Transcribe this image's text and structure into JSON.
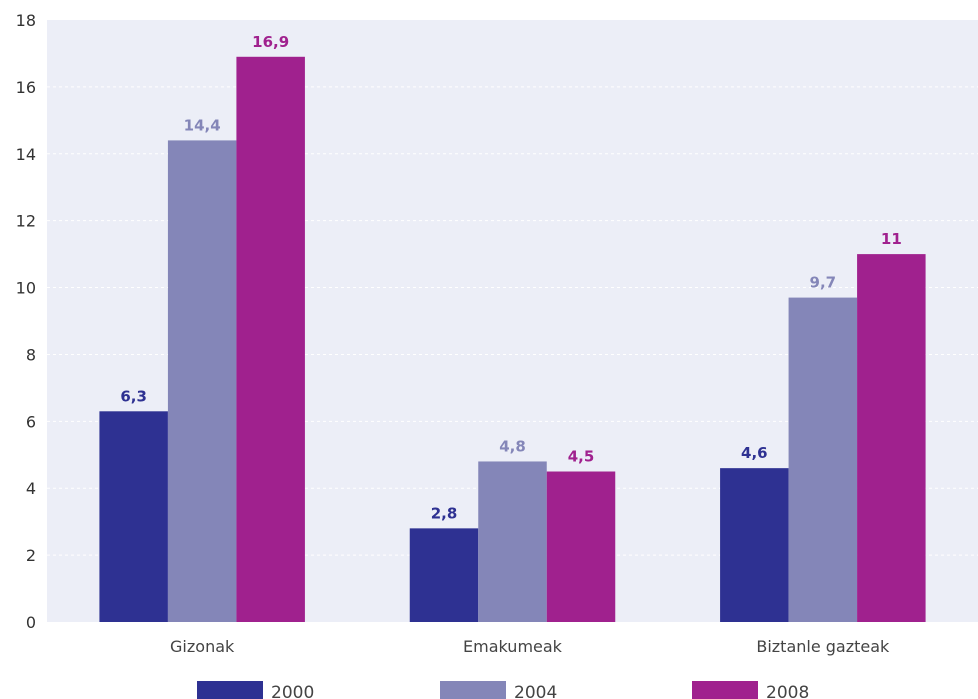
{
  "chart_data": {
    "type": "bar",
    "categories": [
      "Gizonak",
      "Emakumeak",
      "Biztanle gazteak"
    ],
    "series": [
      {
        "name": "2000",
        "values": [
          6.3,
          2.8,
          4.6
        ],
        "labels": [
          "6,3",
          "2,8",
          "4,6"
        ],
        "color": "#2e3192"
      },
      {
        "name": "2004",
        "values": [
          14.4,
          4.8,
          9.7
        ],
        "labels": [
          "14,4",
          "4,8",
          "9,7"
        ],
        "color": "#8486b8"
      },
      {
        "name": "2008",
        "values": [
          16.9,
          4.5,
          11
        ],
        "labels": [
          "16,9",
          "4,5",
          "11"
        ],
        "color": "#a0218e"
      }
    ],
    "ylim": [
      0,
      18
    ],
    "yticks": [
      0,
      2,
      4,
      6,
      8,
      10,
      12,
      14,
      16,
      18
    ],
    "grid": true,
    "legend": "bottom",
    "plot_background": "#eceef7"
  }
}
